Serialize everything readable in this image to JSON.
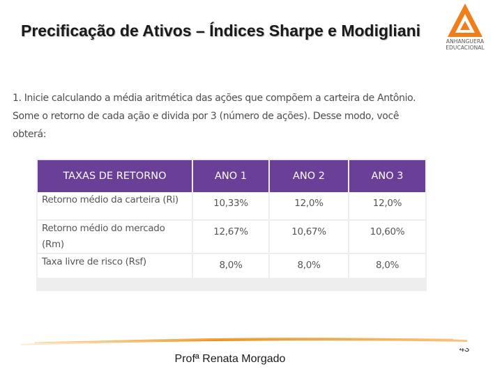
{
  "slide": {
    "title": "Precificação de Ativos – Índices Sharpe e Modigliani",
    "intro": "1. Inicie calculando a média aritmética das ações que compõem a carteira de Antônio. Some o retorno de cada ação e divida por 3 (número de ações). Desse modo, você obterá:",
    "footer": "Profª Renata Morgado",
    "page_number": "43"
  },
  "logo": {
    "line1": "ANHANGUERA",
    "line2": "EDUCACIONAL",
    "colors": {
      "primary": "#f07f1a",
      "inner": "#ffffff"
    }
  },
  "table": {
    "headers": [
      "TAXAS DE RETORNO",
      "ANO 1",
      "ANO 2",
      "ANO 3"
    ],
    "rows": [
      {
        "label": "Retorno médio da carteira (Ri)",
        "values": [
          "10,33%",
          "12,0%",
          "12,0%"
        ]
      },
      {
        "label": "Retorno médio do mercado (Rm)",
        "values": [
          "12,67%",
          "10,67%",
          "10,60%"
        ]
      },
      {
        "label": "Taxa livre de risco (Rsf)",
        "values": [
          "8,0%",
          "8,0%",
          "8,0%"
        ]
      }
    ],
    "colors": {
      "header_bg": "#6a3f98",
      "header_text": "#ffffff",
      "grid": "#eeeeee"
    }
  },
  "decor": {
    "swoosh_colors": [
      "#f7c06a",
      "#e9901c",
      "#f0a030"
    ]
  }
}
